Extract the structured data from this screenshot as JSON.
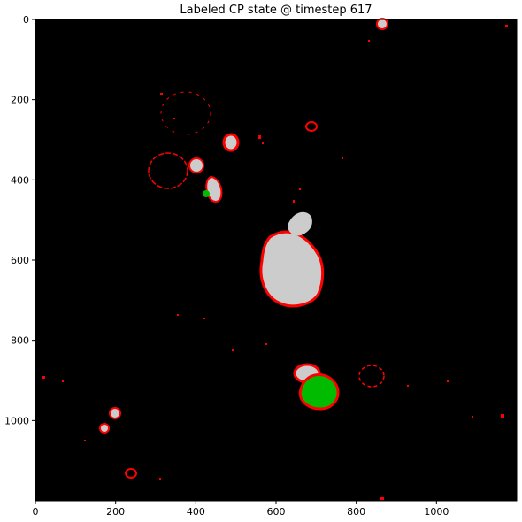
{
  "title": "Labeled CP state @ timestep 617",
  "x_ticks": [
    {
      "value": 0,
      "label": "0"
    },
    {
      "value": 200,
      "label": "200"
    },
    {
      "value": 400,
      "label": "400"
    },
    {
      "value": 600,
      "label": "600"
    },
    {
      "value": 800,
      "label": "800"
    },
    {
      "value": 1000,
      "label": "1000"
    }
  ],
  "y_ticks": [
    {
      "value": 0,
      "label": "0"
    },
    {
      "value": 200,
      "label": "200"
    },
    {
      "value": 400,
      "label": "400"
    },
    {
      "value": 600,
      "label": "600"
    },
    {
      "value": 800,
      "label": "800"
    },
    {
      "value": 1000,
      "label": "1000"
    }
  ],
  "axis_range": {
    "x": [
      0,
      1200
    ],
    "y": [
      0,
      1200
    ]
  },
  "colors": {
    "background": "#000000",
    "cell_body": "#cccccc",
    "cell_boundary": "#ff0000",
    "highlighted_cell": "#00bb00"
  }
}
